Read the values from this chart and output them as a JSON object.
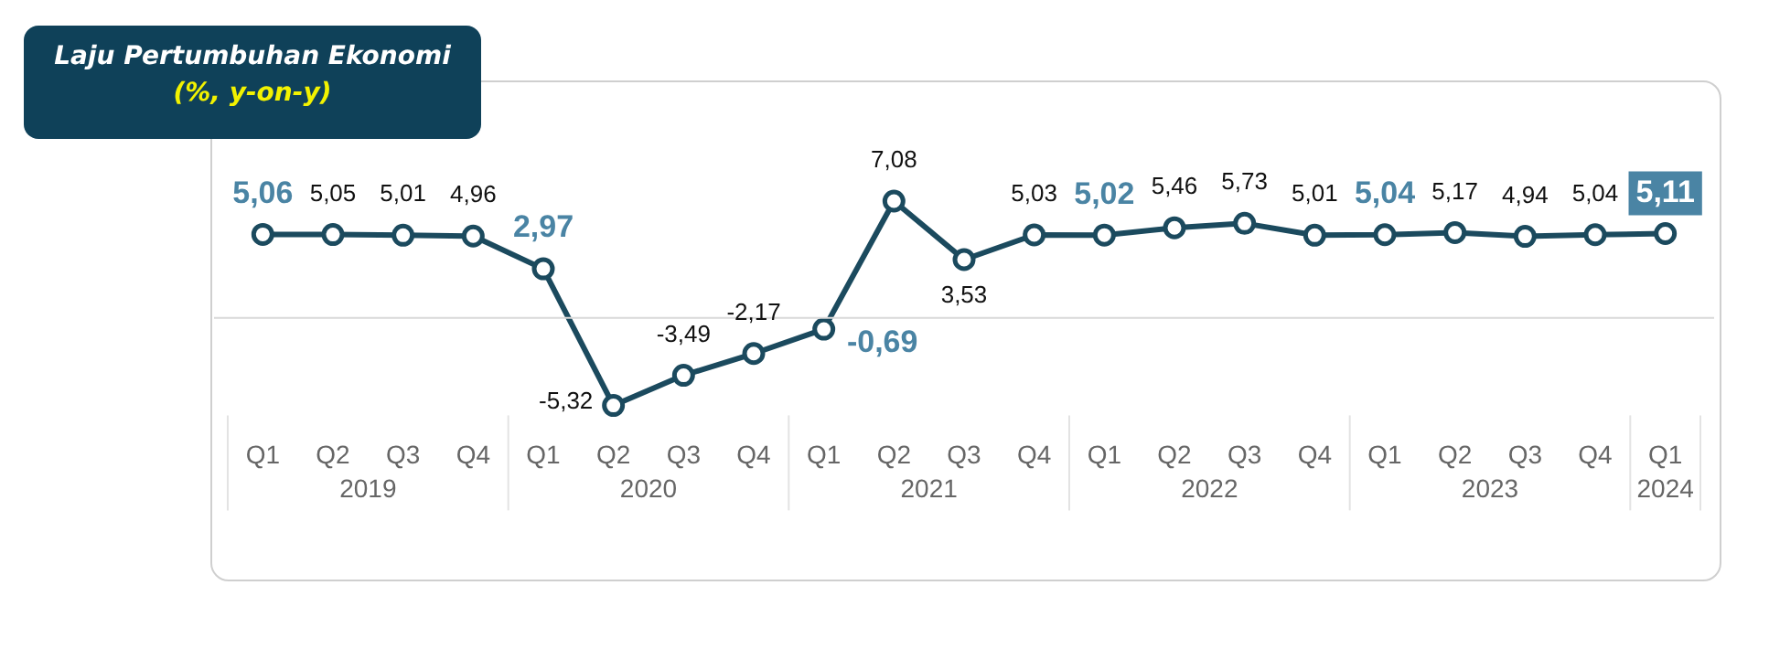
{
  "chart_data": {
    "type": "line",
    "title": "Laju Pertumbuhan Ekonomi",
    "subtitle": "(%, y-on-y)",
    "categories": [
      "Q1",
      "Q2",
      "Q3",
      "Q4",
      "Q1",
      "Q2",
      "Q3",
      "Q4",
      "Q1",
      "Q2",
      "Q3",
      "Q4",
      "Q1",
      "Q2",
      "Q3",
      "Q4",
      "Q1",
      "Q2",
      "Q3",
      "Q4",
      "Q1"
    ],
    "annotations": [
      "2019",
      "2020",
      "2021",
      "2022",
      "2023",
      "2024"
    ],
    "series": [
      {
        "color": "#1b4a5e",
        "values": [
          5.06,
          5.05,
          5.01,
          4.96,
          2.97,
          -5.32,
          -3.49,
          -2.17,
          -0.69,
          7.08,
          3.53,
          5.03,
          5.02,
          5.46,
          5.73,
          5.01,
          5.04,
          5.17,
          4.94,
          5.04,
          5.11
        ],
        "value_labels": [
          "5,06",
          "5,05",
          "5,01",
          "4,96",
          "2,97",
          "-5,32",
          "-3,49",
          "-2,17",
          "-0,69",
          "7,08",
          "3,53",
          "5,03",
          "5,02",
          "5,46",
          "5,73",
          "5,01",
          "5,04",
          "5,17",
          "4,94",
          "5,04",
          "5,11"
        ]
      }
    ],
    "marker": "circle",
    "line_style": "solid",
    "grid": false,
    "legend": false,
    "ref_lines": [
      {
        "axis": "y",
        "value": 0,
        "color": "#d9d9d9"
      }
    ]
  }
}
